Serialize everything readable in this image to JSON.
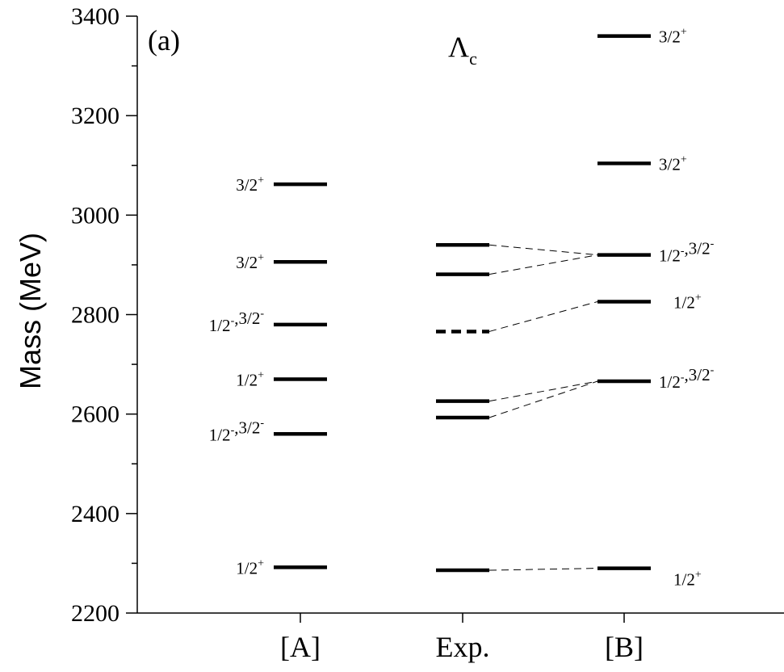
{
  "chart_data": {
    "type": "scatter",
    "panel_label": "(a)",
    "title": {
      "main": "Λ",
      "sub": "c"
    },
    "ylabel": "Mass (MeV)",
    "ylim": [
      2200,
      3400
    ],
    "yticks": [
      2200,
      2400,
      2600,
      2800,
      3000,
      3200,
      3400
    ],
    "categories": [
      "[A]",
      "Exp.",
      "[B]"
    ],
    "series": [
      {
        "category": "[A]",
        "levels": [
          {
            "mass": 3062,
            "base": "3/2",
            "sup": "+"
          },
          {
            "mass": 2906,
            "base": "3/2",
            "sup": "+"
          },
          {
            "mass": 2780,
            "parts": [
              {
                "base": "1/2",
                "sup": "-"
              },
              {
                "base": ",3/2",
                "sup": "-"
              }
            ]
          },
          {
            "mass": 2670,
            "base": "1/2",
            "sup": "+"
          },
          {
            "mass": 2560,
            "parts": [
              {
                "base": "1/2",
                "sup": "-"
              },
              {
                "base": ",3/2",
                "sup": "-"
              }
            ]
          },
          {
            "mass": 2292,
            "base": "1/2",
            "sup": "+"
          }
        ]
      },
      {
        "category": "Exp.",
        "levels": [
          {
            "mass": 2940
          },
          {
            "mass": 2881
          },
          {
            "mass": 2766,
            "dashed": true
          },
          {
            "mass": 2626
          },
          {
            "mass": 2593
          },
          {
            "mass": 2286
          }
        ]
      },
      {
        "category": "[B]",
        "levels": [
          {
            "mass": 3360,
            "base": "3/2",
            "sup": "+"
          },
          {
            "mass": 3104,
            "base": "3/2",
            "sup": "+"
          },
          {
            "mass": 2920,
            "parts": [
              {
                "base": "1/2",
                "sup": "-"
              },
              {
                "base": ",3/2",
                "sup": "-"
              }
            ]
          },
          {
            "mass": 2826,
            "base": "1/2",
            "sup": "+"
          },
          {
            "mass": 2666,
            "parts": [
              {
                "base": "1/2",
                "sup": "-"
              },
              {
                "base": ",3/2",
                "sup": "-"
              }
            ]
          },
          {
            "mass": 2290,
            "base": "1/2",
            "sup": "+"
          }
        ]
      }
    ],
    "connections": [
      {
        "from": 2940,
        "to": 2920
      },
      {
        "from": 2881,
        "to": 2920
      },
      {
        "from": 2766,
        "to": 2826
      },
      {
        "from": 2626,
        "to": 2666
      },
      {
        "from": 2593,
        "to": 2666
      },
      {
        "from": 2286,
        "to": 2290
      }
    ]
  }
}
